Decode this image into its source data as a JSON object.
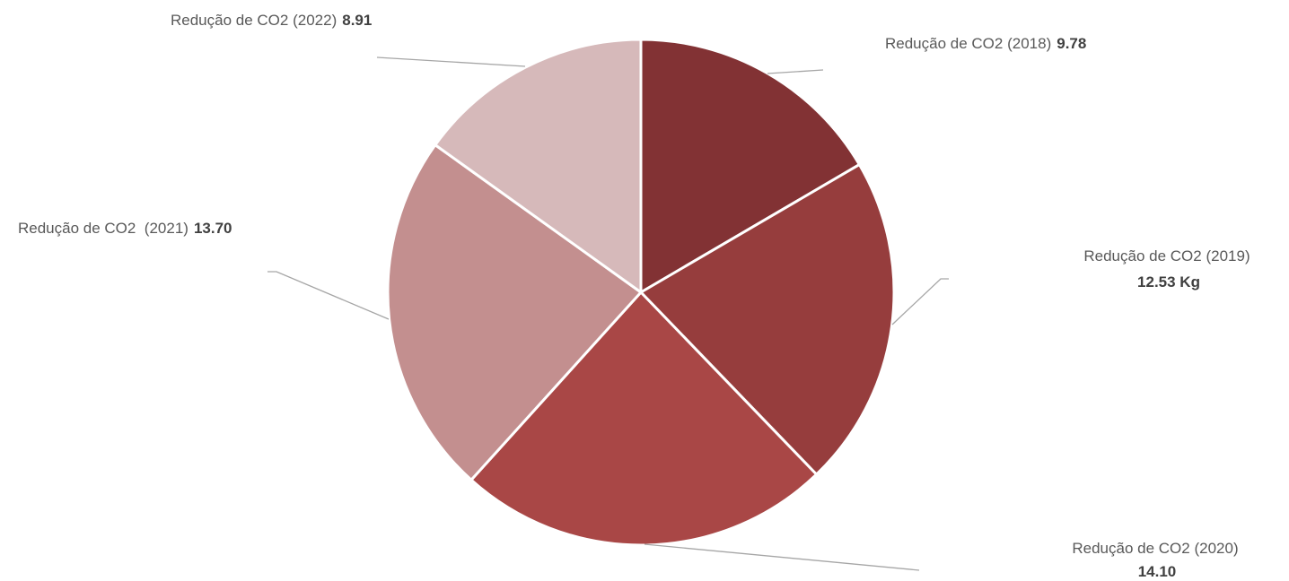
{
  "chart_data": {
    "type": "pie",
    "title": "",
    "start_angle_deg": 0,
    "direction": "clockwise",
    "slices": [
      {
        "label": "Redução de CO2 (2018)",
        "value": 9.78,
        "value_text": "9.78",
        "color": "#823234"
      },
      {
        "label": "Redução de CO2 (2019)",
        "value": 12.53,
        "value_text": "12.53 Kg",
        "color": "#963D3D"
      },
      {
        "label": "Redução de CO2 (2020)",
        "value": 14.1,
        "value_text": "14.10",
        "color": "#A94746"
      },
      {
        "label": "Redução de CO2  (2021)",
        "value": 13.7,
        "value_text": "13.70",
        "color": "#C38F8F"
      },
      {
        "label": "Redução de CO2 (2022)",
        "value": 8.91,
        "value_text": "8.91",
        "color": "#D6B9BA"
      }
    ],
    "leader_line_color": "#A6A6A6",
    "slice_border_color": "#ffffff",
    "legend": "none"
  }
}
